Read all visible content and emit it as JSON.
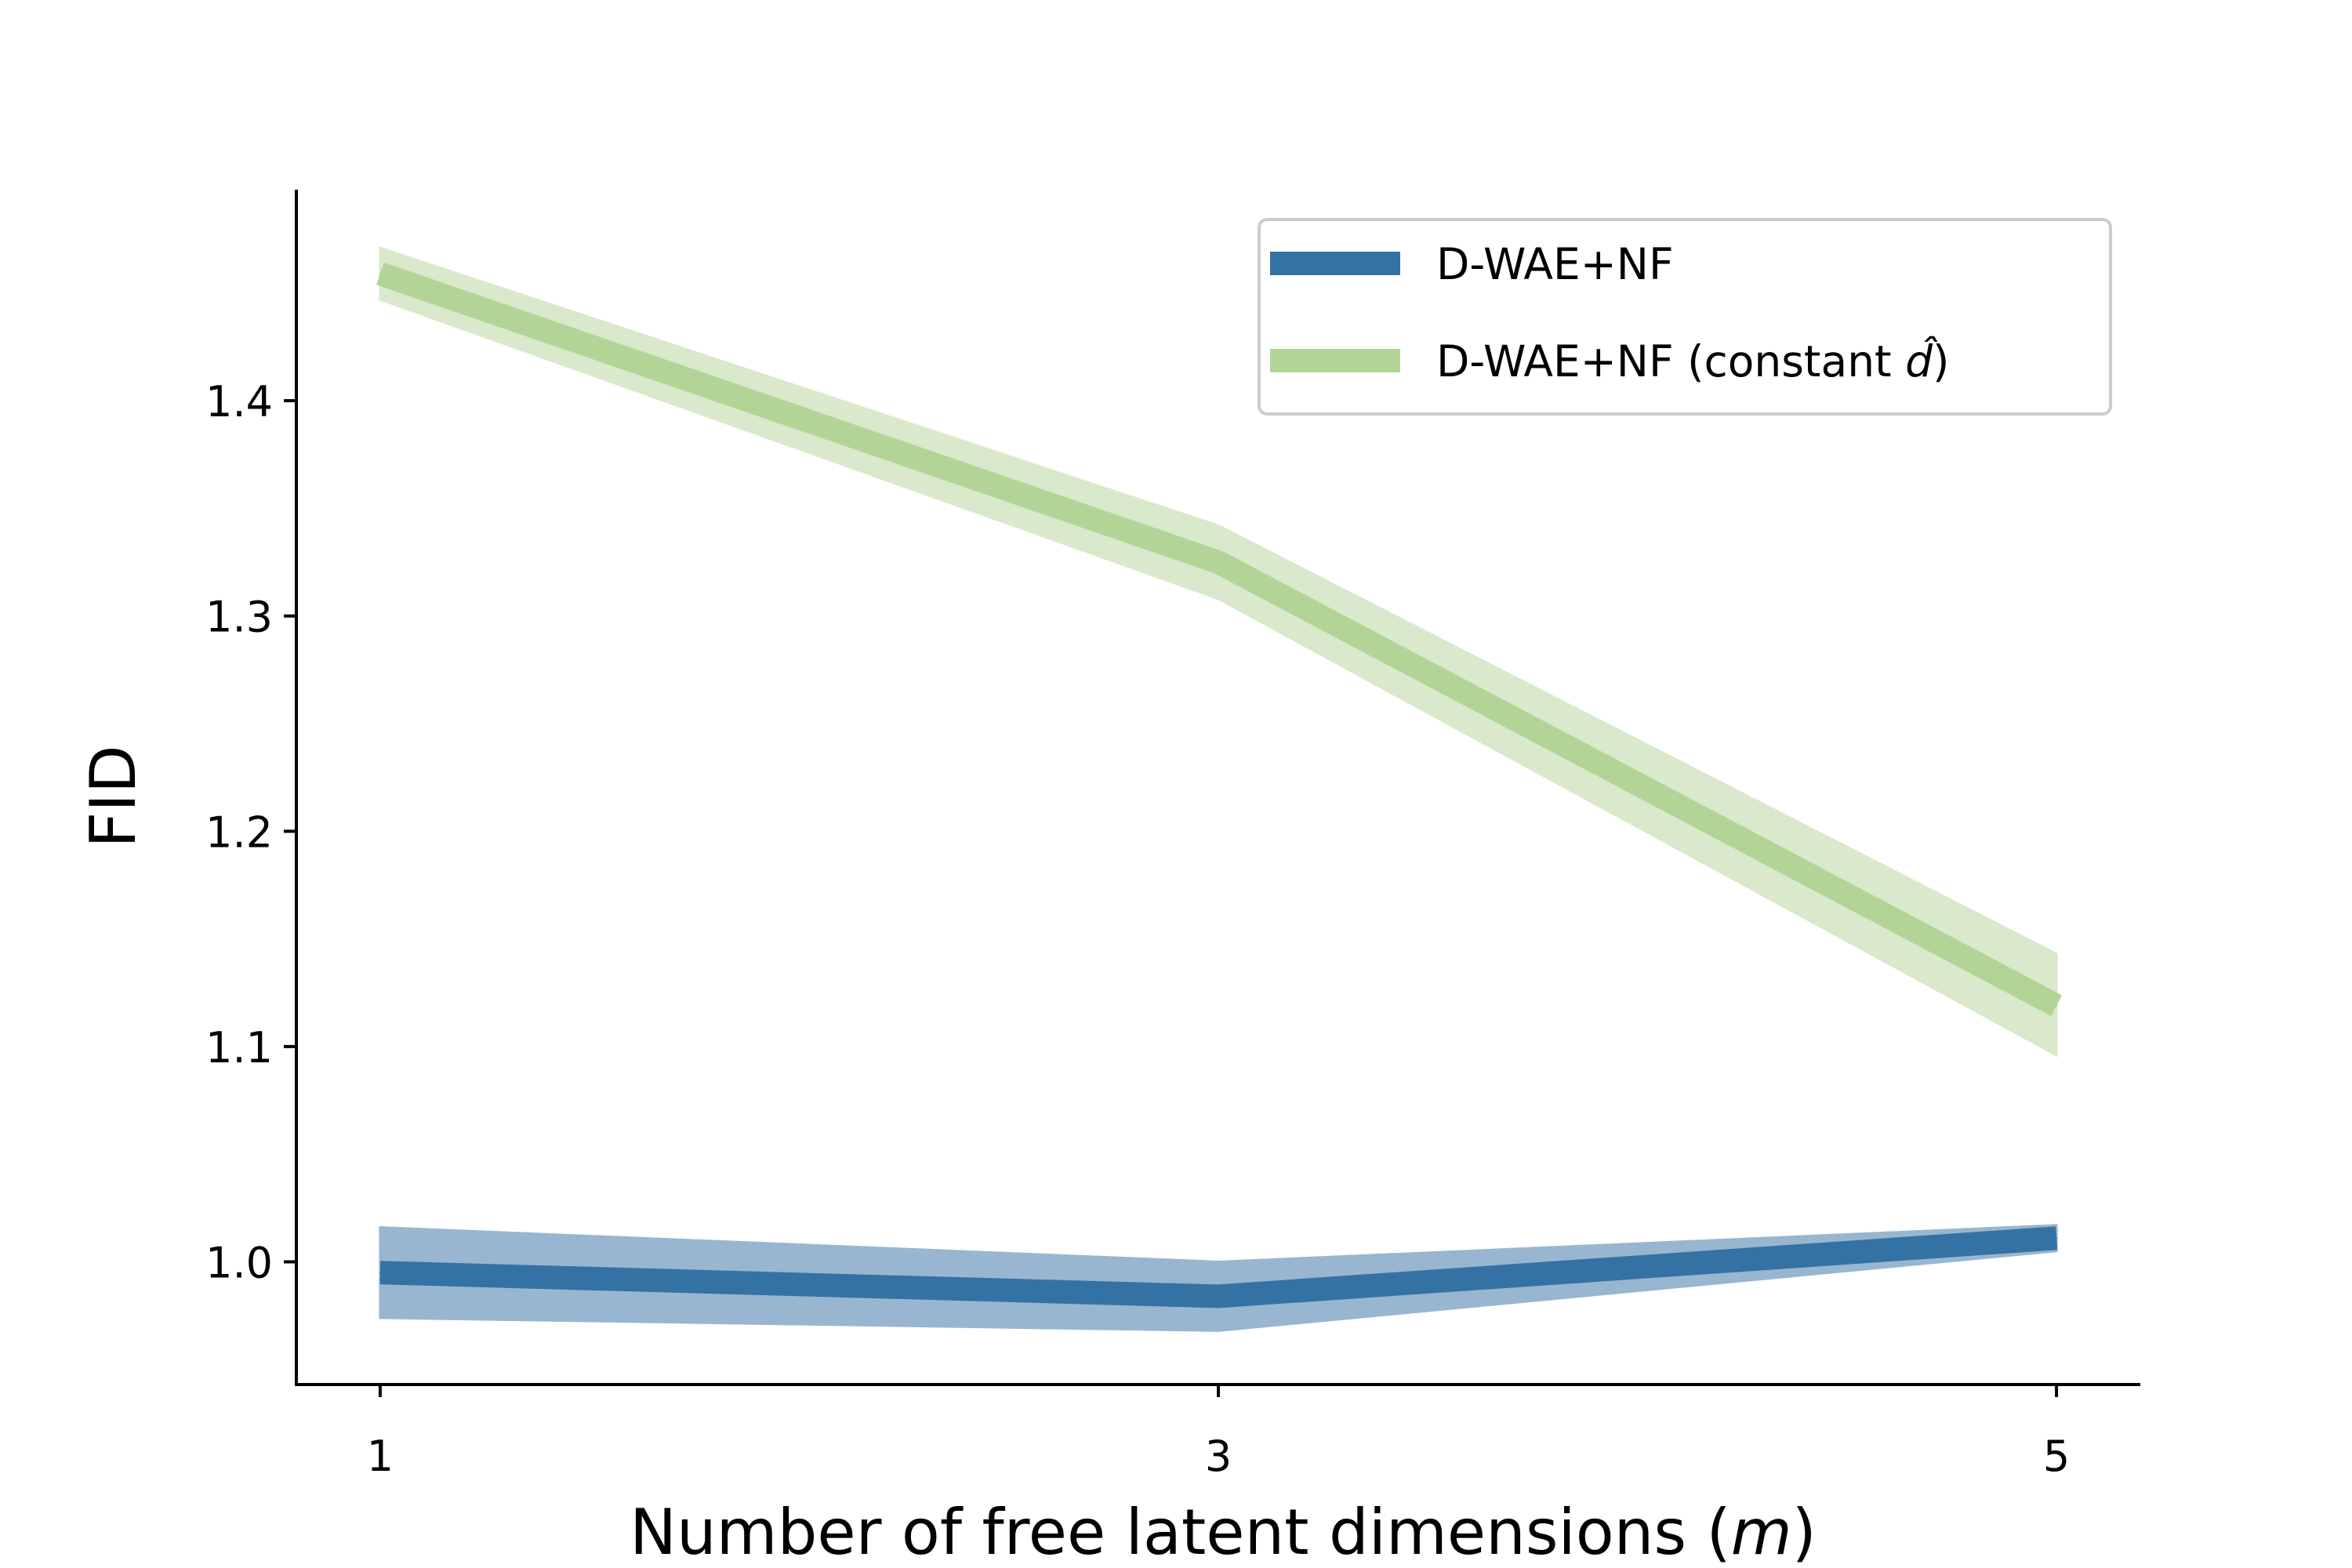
{
  "chart_data": {
    "type": "line",
    "xlabel_prefix": "Number of free latent dimensions (",
    "xlabel_var": "m",
    "xlabel_suffix": ")",
    "ylabel": "FID",
    "x": [
      1,
      3,
      5
    ],
    "x_ticks": [
      "1",
      "3",
      "5"
    ],
    "y_ticks": [
      "1.0",
      "1.1",
      "1.2",
      "1.3",
      "1.4"
    ],
    "y_tick_values": [
      1.0,
      1.1,
      1.2,
      1.3,
      1.4
    ],
    "xlim": [
      0.8,
      5.2
    ],
    "ylim": [
      0.943,
      1.498
    ],
    "grid": false,
    "legend_position": "top-right",
    "series": [
      {
        "name": "D-WAE+NF",
        "color": "#3572a4",
        "band_color": "#98b6d0",
        "values": [
          0.995,
          0.984,
          1.011
        ],
        "lower": [
          0.974,
          0.968,
          1.005
        ],
        "upper": [
          1.016,
          1.0,
          1.017
        ]
      },
      {
        "name": "D-WAE+NF (constant d̂)",
        "legend_prefix": "D-WAE+NF (constant ",
        "legend_var": "d̂",
        "legend_suffix": ")",
        "color": "#b2d597",
        "band_color": "#dae8cb",
        "values": [
          1.459,
          1.325,
          1.119
        ],
        "lower": [
          1.447,
          1.308,
          1.096
        ],
        "upper": [
          1.471,
          1.342,
          1.143
        ]
      }
    ]
  }
}
